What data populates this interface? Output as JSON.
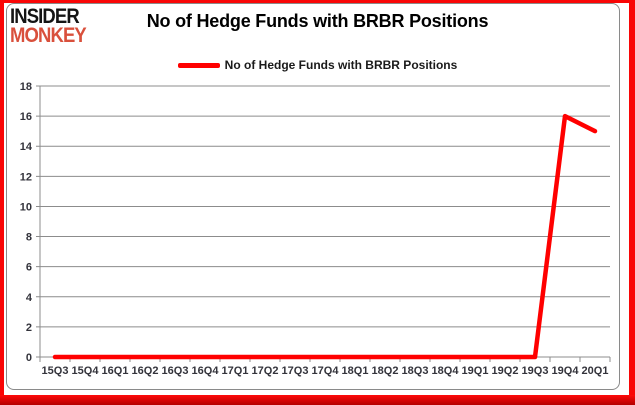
{
  "logo": {
    "line1": "INSIDER",
    "line2": "MONKEY",
    "color1": "#141414",
    "color2": "#d9503c"
  },
  "header": {
    "title": "No of Hedge Funds with BRBR Positions"
  },
  "legend": {
    "label": "No of Hedge Funds with BRBR Positions",
    "marker_color": "#ff0000"
  },
  "frame": {
    "outer_border_color": "#f90606",
    "inner_border_color": "#8a8a8a"
  },
  "chart_data": {
    "type": "line",
    "title": "No of Hedge Funds with BRBR Positions",
    "categories": [
      "15Q3",
      "15Q4",
      "16Q1",
      "16Q2",
      "16Q3",
      "16Q4",
      "17Q1",
      "17Q2",
      "17Q3",
      "17Q4",
      "18Q1",
      "18Q2",
      "18Q3",
      "18Q4",
      "19Q1",
      "19Q2",
      "19Q3",
      "19Q4",
      "20Q1"
    ],
    "series": [
      {
        "name": "No of Hedge Funds with BRBR Positions",
        "color": "#ff0000",
        "values": [
          0,
          0,
          0,
          0,
          0,
          0,
          0,
          0,
          0,
          0,
          0,
          0,
          0,
          0,
          0,
          0,
          0,
          16,
          15
        ]
      }
    ],
    "xlabel": "",
    "ylabel": "",
    "ylim": [
      0,
      18
    ],
    "yticks": [
      0,
      2,
      4,
      6,
      8,
      10,
      12,
      14,
      16,
      18
    ],
    "grid": true,
    "grid_color": "#8c8c8c",
    "background": "#ffffff",
    "legend_position": "top-center"
  }
}
